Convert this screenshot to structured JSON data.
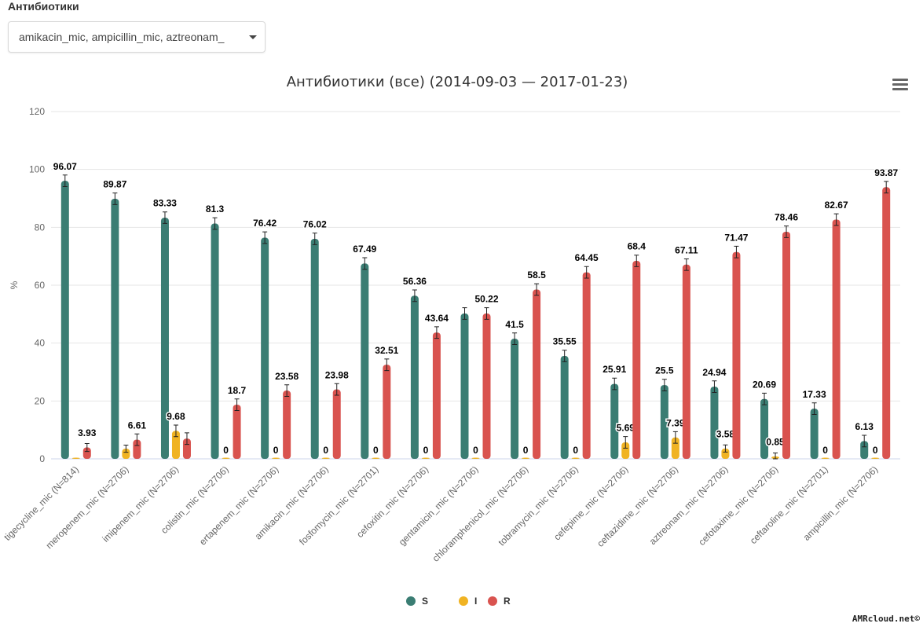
{
  "filter": {
    "label": "Антибиотики",
    "value": "amikacin_mic, ampicillin_mic, aztreonam_"
  },
  "credit": "AMRcloud.net©",
  "colors": {
    "S": "#3a7d73",
    "I": "#f0b323",
    "R": "#d9534f"
  },
  "chart_data": {
    "type": "bar",
    "title": "Антибиотики (все) (2014-09-03 — 2017-01-23)",
    "xlabel": "",
    "ylabel": "%",
    "ylim": [
      0,
      120
    ],
    "yticks": [
      0,
      20,
      40,
      60,
      80,
      100,
      120
    ],
    "grid": true,
    "legend_position": "bottom-center",
    "categories": [
      "tigecycline_mic (N=814)",
      "meropenem_mic (N=2706)",
      "imipenem_mic (N=2706)",
      "colistin_mic (N=2706)",
      "ertapenem_mic (N=2706)",
      "amikacin_mic (N=2706)",
      "fosfomycin_mic (N=2701)",
      "cefoxitin_mic (N=2706)",
      "gentamicin_mic (N=2706)",
      "chloramphenicol_mic (N=2706)",
      "tobramycin_mic (N=2706)",
      "cefepime_mic (N=2706)",
      "ceftazidime_mic (N=2706)",
      "aztreonam_mic (N=2706)",
      "cefotaxime_mic (N=2706)",
      "ceftaroline_mic (N=2701)",
      "ampicillin_mic (N=2706)"
    ],
    "series": [
      {
        "name": "S",
        "values": [
          96.07,
          89.87,
          83.33,
          81.3,
          76.42,
          76.02,
          67.49,
          56.36,
          50.22,
          41.5,
          35.55,
          25.91,
          25.5,
          24.94,
          20.69,
          17.33,
          6.13
        ],
        "labels": [
          "96.07",
          "89.87",
          "83.33",
          "81.3",
          "76.42",
          "76.02",
          "67.49",
          "56.36",
          "",
          "41.5",
          "35.55",
          "25.91",
          "25.5",
          "24.94",
          "20.69",
          "17.33",
          "6.13"
        ]
      },
      {
        "name": "I",
        "values": [
          0,
          3.52,
          9.68,
          0,
          0,
          0,
          0,
          0,
          0,
          0,
          0,
          5.69,
          7.39,
          3.58,
          0.85,
          0,
          0
        ],
        "labels": [
          "",
          "",
          "9.68",
          "0",
          "0",
          "0",
          "0",
          "0",
          "0",
          "0",
          "0",
          "5.69",
          "7.39",
          "3.58",
          "0.85",
          "0",
          "0"
        ]
      },
      {
        "name": "R",
        "values": [
          3.93,
          6.61,
          6.99,
          18.7,
          23.58,
          23.98,
          32.51,
          43.64,
          50.22,
          58.5,
          64.45,
          68.4,
          67.11,
          71.47,
          78.46,
          82.67,
          93.87
        ],
        "labels": [
          "3.93",
          "6.61",
          "",
          "18.7",
          "23.58",
          "23.98",
          "32.51",
          "43.64",
          "50.22",
          "58.5",
          "64.45",
          "68.4",
          "67.11",
          "71.47",
          "78.46",
          "82.67",
          "93.87"
        ]
      }
    ]
  }
}
